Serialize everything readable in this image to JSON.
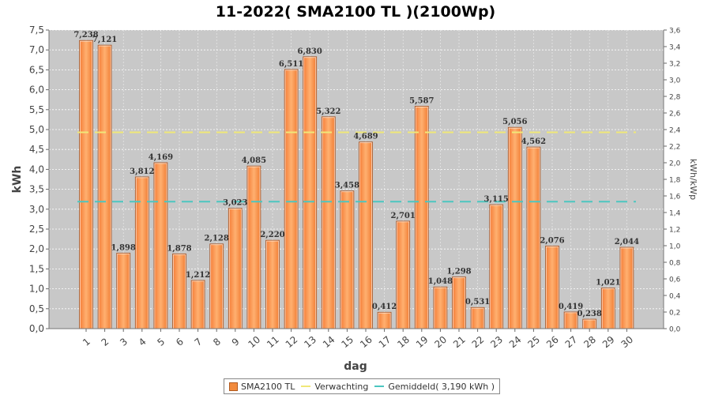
{
  "chart_data": {
    "type": "bar",
    "title": "11-2022( SMA2100 TL )(2100Wp)",
    "xlabel": "dag",
    "ylabel": "kWh",
    "y2label": "kWh/kWp",
    "ylim": [
      0,
      7.5
    ],
    "y_ticks": [
      "0,0",
      "0,5",
      "1,0",
      "1,5",
      "2,0",
      "2,5",
      "3,0",
      "3,5",
      "4,0",
      "4,5",
      "5,0",
      "5,5",
      "6,0",
      "6,5",
      "7,0",
      "7,5"
    ],
    "y2lim": [
      0,
      3.6
    ],
    "y2_ticks": [
      "0,0",
      "0,2",
      "0,4",
      "0,6",
      "0,8",
      "1,0",
      "1,2",
      "1,4",
      "1,6",
      "1,8",
      "2,0",
      "2,2",
      "2,4",
      "2,6",
      "2,8",
      "3,0",
      "3,2",
      "3,4",
      "3,6"
    ],
    "categories": [
      "1",
      "2",
      "3",
      "4",
      "5",
      "6",
      "7",
      "8",
      "9",
      "10",
      "11",
      "12",
      "13",
      "14",
      "15",
      "16",
      "17",
      "18",
      "19",
      "20",
      "21",
      "22",
      "23",
      "24",
      "25",
      "26",
      "27",
      "28",
      "29",
      "30"
    ],
    "values": [
      7.238,
      7.121,
      1.898,
      3.812,
      4.169,
      1.878,
      1.212,
      2.128,
      3.023,
      4.085,
      2.22,
      6.511,
      6.83,
      5.322,
      3.458,
      4.689,
      0.412,
      2.701,
      5.587,
      1.048,
      1.298,
      0.531,
      3.115,
      5.056,
      4.562,
      2.076,
      0.419,
      0.238,
      1.021,
      2.044
    ],
    "value_labels": [
      "7,238",
      "7,121",
      "1,898",
      "3,812",
      "4,169",
      "1,878",
      "1,212",
      "2,128",
      "3,023",
      "4,085",
      "2,220",
      "6,511",
      "6,830",
      "5,322",
      "3,458",
      "4,689",
      "0,412",
      "2,701",
      "5,587",
      "1,048",
      "1,298",
      "0,531",
      "3,115",
      "5,056",
      "4,562",
      "2,076",
      "0,419",
      "0,238",
      "1,021",
      "2,044"
    ],
    "reference_lines": [
      {
        "name": "Verwachting",
        "value": 4.93,
        "color": "#f0e878"
      },
      {
        "name": "Gemiddeld",
        "value": 3.19,
        "color": "#4cc6c0"
      }
    ],
    "series_name": "SMA2100 TL",
    "bar_color": "#f28a3c",
    "grid": true,
    "legend_position": "bottom"
  },
  "legend": {
    "series_label": "SMA2100 TL",
    "expected_label": "Verwachting",
    "average_label": "Gemiddeld( 3,190 kWh )"
  }
}
